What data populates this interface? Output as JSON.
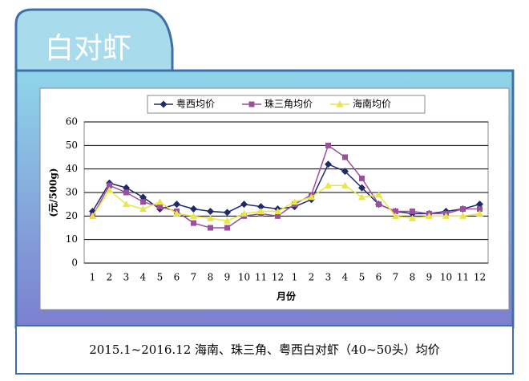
{
  "header": {
    "title": "白对虾"
  },
  "chart_data": {
    "type": "line",
    "categories": [
      "1",
      "2",
      "3",
      "4",
      "5",
      "6",
      "7",
      "8",
      "9",
      "10",
      "11",
      "12",
      "1",
      "2",
      "3",
      "4",
      "5",
      "6",
      "7",
      "8",
      "9",
      "10",
      "11",
      "12"
    ],
    "series": [
      {
        "name": "粤西均价",
        "color": "#1f2a6b",
        "marker": "diamond",
        "values": [
          22,
          34,
          32,
          28,
          23,
          25,
          23,
          22,
          21.5,
          25,
          24,
          23,
          24,
          27,
          42,
          39,
          32,
          25,
          22,
          21,
          21,
          22,
          23,
          25
        ]
      },
      {
        "name": "珠三角均价",
        "color": "#9b4f9e",
        "marker": "square",
        "values": [
          20,
          33,
          30,
          26,
          24,
          22,
          17,
          15,
          15,
          20,
          21,
          20,
          25,
          29,
          50,
          45,
          36,
          25,
          22,
          22,
          21,
          21,
          23,
          23
        ]
      },
      {
        "name": "海南均价",
        "color": "#e6e645",
        "marker": "triangle",
        "values": [
          20,
          31,
          25,
          23,
          26,
          21,
          20,
          19,
          18,
          21,
          22,
          22,
          26,
          28,
          33,
          33,
          28,
          29,
          20,
          19,
          20,
          20,
          20,
          21
        ]
      }
    ],
    "ylim": [
      0,
      60
    ],
    "yticks": [
      0,
      10,
      20,
      30,
      40,
      50,
      60
    ],
    "grid": true,
    "y_label": "(元/500g)",
    "x_label": "月份",
    "legend": "top"
  },
  "caption": "2015.1~2016.12 海南、珠三角、粤西白对虾（40~50头）均价"
}
